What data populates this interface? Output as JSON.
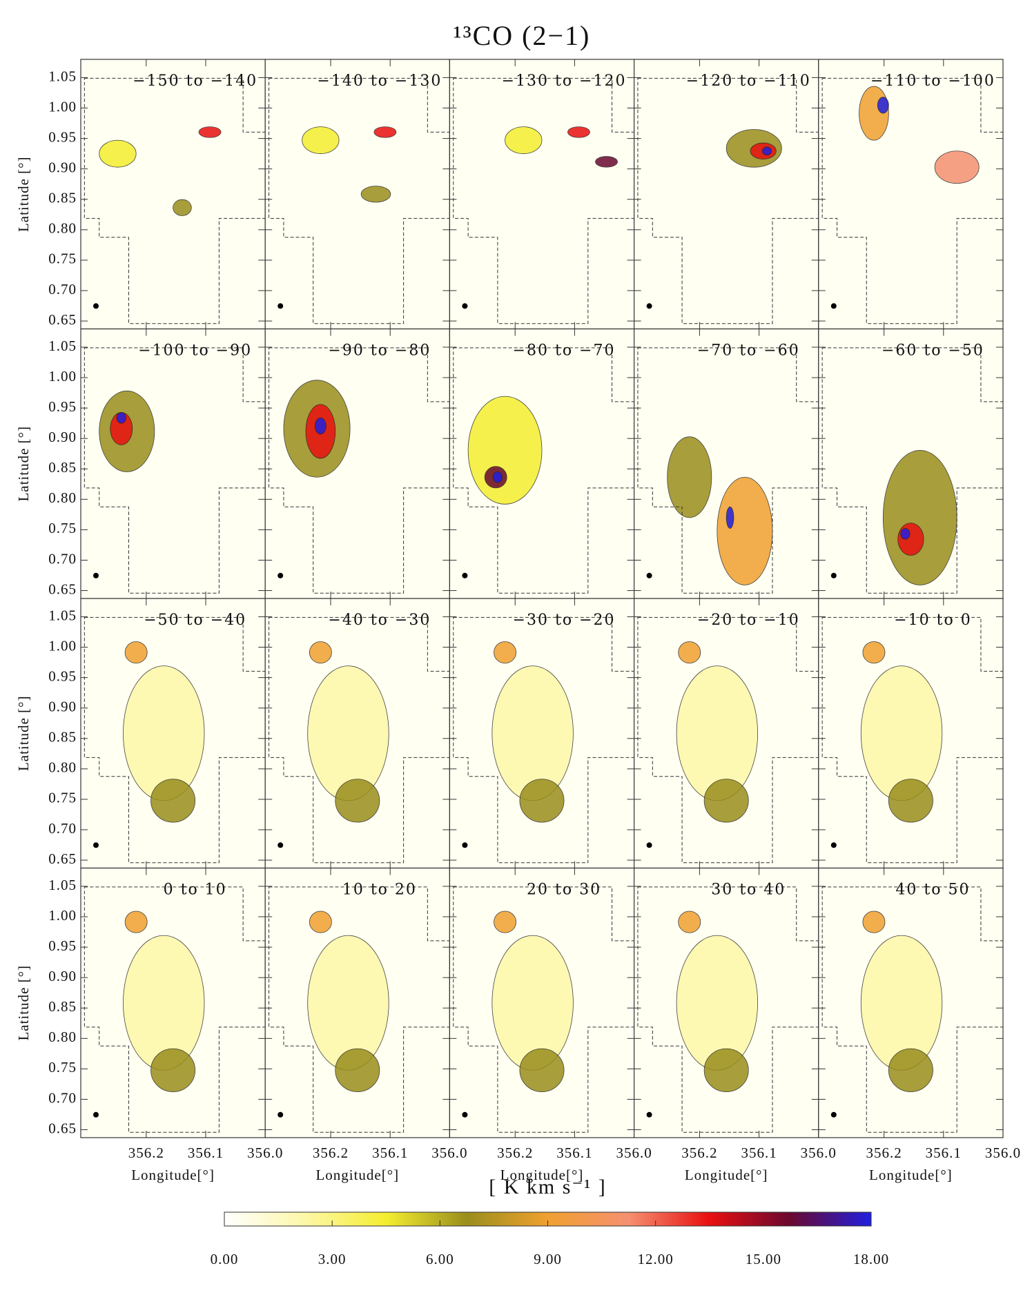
{
  "chart_data": {
    "type": "channel-maps",
    "title": "¹³CO (2−1)",
    "panels": [
      "−150 to −140",
      "−140 to −130",
      "−130 to −120",
      "−120 to −110",
      "−110 to −100",
      "−100 to −90",
      "−90 to −80",
      "−80 to −70",
      "−70 to −60",
      "−60 to −50",
      "−50 to −40",
      "−40 to −30",
      "−30 to −20",
      "−20 to −10",
      "−10 to 0",
      "0 to 10",
      "10 to 20",
      "20 to 30",
      "30 to 40",
      "40 to 50"
    ],
    "columns": 5,
    "xlabel": "Longitude[°]",
    "ylabel": "Latitude [°]",
    "xlim": [
      356.31,
      356.0
    ],
    "xticks": [
      356.2,
      356.1,
      {
        "value": 356.0,
        "label": "356.0"
      }
    ],
    "ylim": [
      0.637,
      1.08
    ],
    "yticks": [
      0.65,
      {
        "value": 0.7,
        "label": "0.70"
      },
      0.75,
      {
        "value": 0.8,
        "label": "0.80"
      },
      0.85,
      {
        "value": 0.9,
        "label": "0.90"
      },
      0.95,
      {
        "value": 1.0,
        "label": "1.00"
      },
      1.05
    ],
    "colorbar": {
      "label": "[ K km s⁻¹ ]",
      "lim": [
        0,
        18
      ],
      "ticks": [
        {
          "value": 0,
          "label": "0.00"
        },
        {
          "value": 3,
          "label": "3.00"
        },
        {
          "value": 6,
          "label": "6.00"
        },
        {
          "value": 9,
          "label": "9.00"
        },
        {
          "value": 12,
          "label": "12.00"
        },
        {
          "value": 15,
          "label": "15.00"
        },
        {
          "value": 18,
          "label": "18.00"
        }
      ],
      "colors": [
        "#ffffff",
        "#fdf7a8",
        "#f4ee30",
        "#9a8e1c",
        "#f0a030",
        "#f59070",
        "#e81010",
        "#6a0830",
        "#2020e0"
      ]
    }
  }
}
